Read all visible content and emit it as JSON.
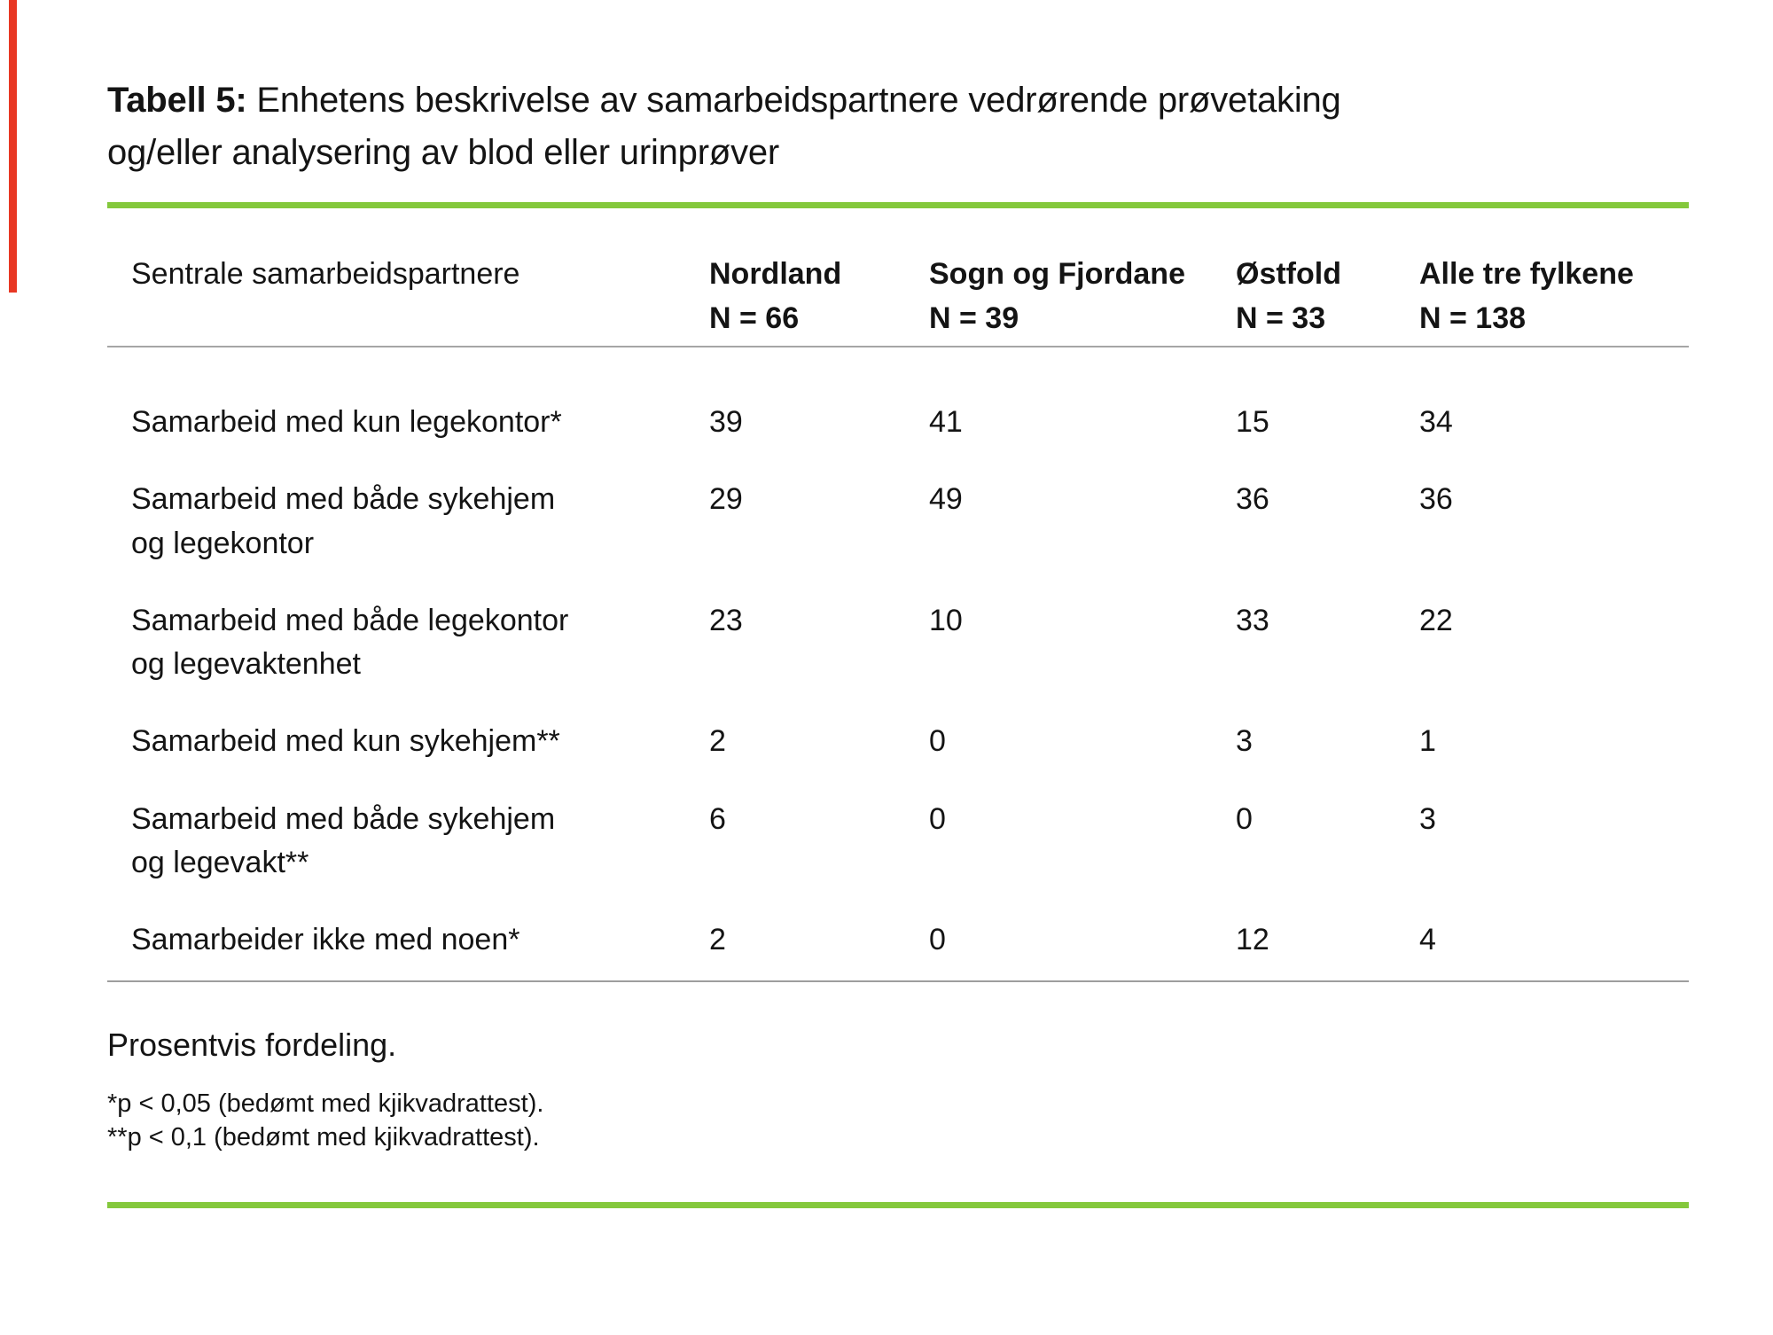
{
  "page": {
    "title_bold": "Tabell 5:",
    "title_line1_rest": " Enhetens beskrivelse av samarbeidspartnere vedrørende prøvetaking",
    "title_line2": "og/eller analysering av blod eller urinprøver"
  },
  "colors": {
    "accent_green": "#84C83C",
    "rule_gray": "#A6A6A6",
    "edge_red": "#E83723"
  },
  "table": {
    "header": {
      "label": "Sentrale samarbeidspartnere",
      "columns": [
        {
          "name": "Nordland",
          "n": "N = 66"
        },
        {
          "name": "Sogn og Fjordane",
          "n": "N = 39"
        },
        {
          "name": "Østfold",
          "n": "N = 33"
        },
        {
          "name": "Alle tre fylkene",
          "n": "N = 138"
        }
      ]
    },
    "rows": [
      {
        "label_line1": "Samarbeid med kun legekontor*",
        "label_line2": "",
        "values": [
          "39",
          "41",
          "15",
          "34"
        ]
      },
      {
        "label_line1": "Samarbeid med både sykehjem",
        "label_line2": "og legekontor",
        "values": [
          "29",
          "49",
          "36",
          "36"
        ]
      },
      {
        "label_line1": "Samarbeid med både legekontor",
        "label_line2": "og legevaktenhet",
        "values": [
          "23",
          "10",
          "33",
          "22"
        ]
      },
      {
        "label_line1": "Samarbeid med kun sykehjem**",
        "label_line2": "",
        "values": [
          "2",
          "0",
          "3",
          "1"
        ]
      },
      {
        "label_line1": "Samarbeid med både sykehjem",
        "label_line2": "og legevakt**",
        "values": [
          "6",
          "0",
          "0",
          "3"
        ]
      },
      {
        "label_line1": "Samarbeider ikke med noen*",
        "label_line2": "",
        "values": [
          "2",
          "0",
          "12",
          "4"
        ]
      }
    ]
  },
  "footer": {
    "note": "Prosentvis fordeling.",
    "footnote1": "*p < 0,05 (bedømt med kjikvadrattest).",
    "footnote2": "**p < 0,1 (bedømt med kjikvadrattest)."
  }
}
